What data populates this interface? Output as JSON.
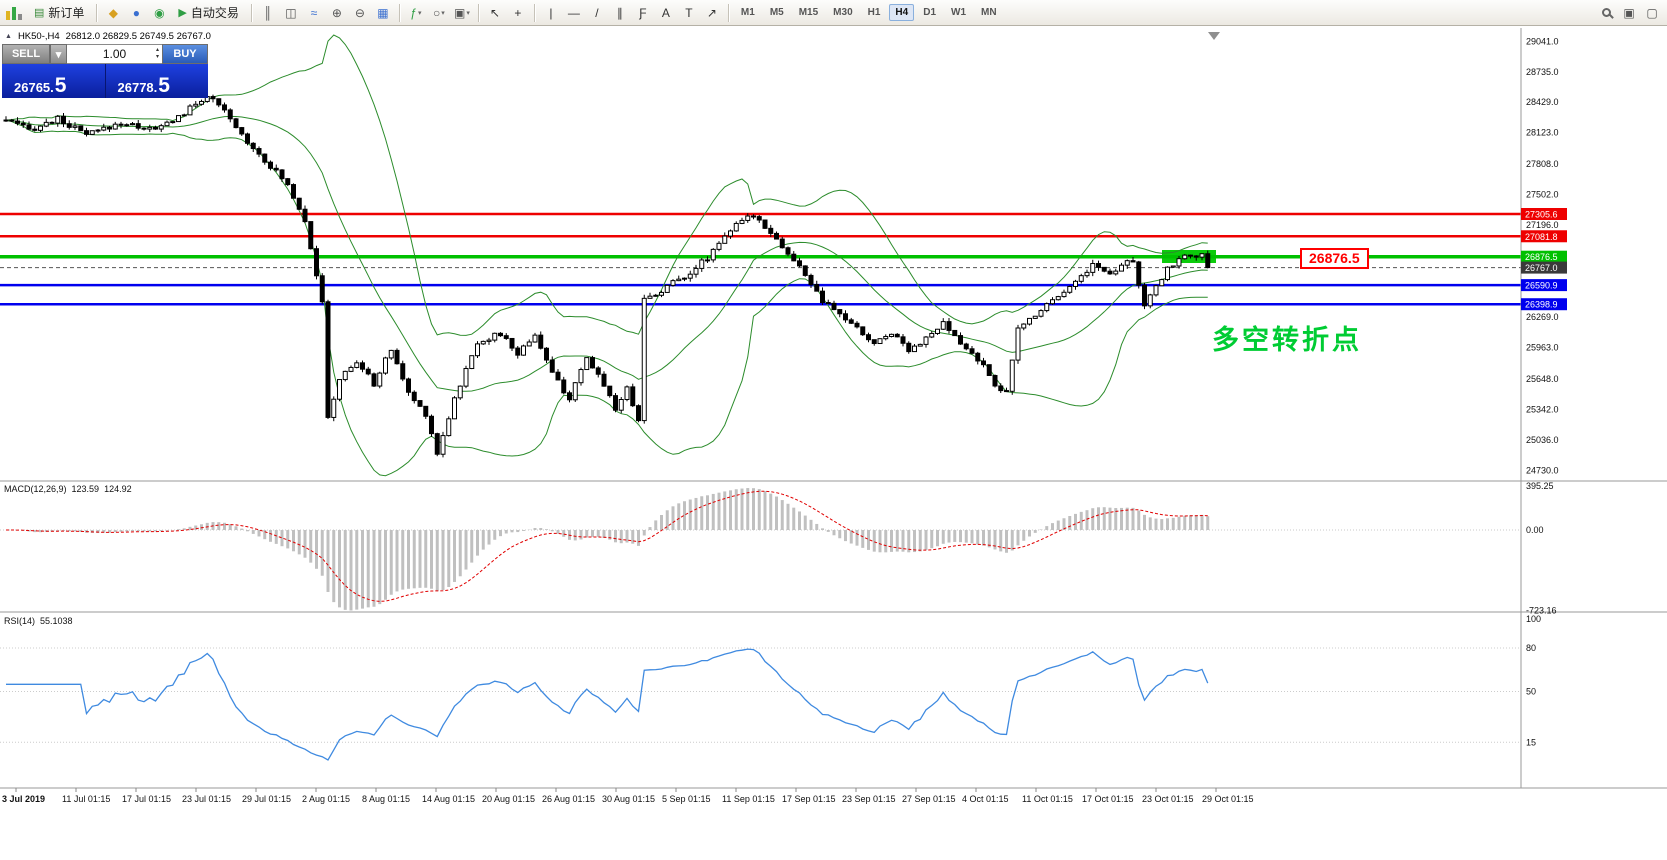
{
  "toolbar": {
    "timeframes": [
      "M1",
      "M5",
      "M15",
      "M30",
      "H1",
      "H4",
      "D1",
      "W1",
      "MN"
    ],
    "active_timeframe": "H4",
    "items": [
      {
        "t": "app"
      },
      {
        "t": "btn",
        "name": "new-order-button",
        "icon": "new-order-icon",
        "glyph": "▤",
        "color": "#3a8a3a",
        "label": "新订单"
      },
      {
        "t": "sep"
      },
      {
        "t": "icon",
        "name": "profiles-icon",
        "glyph": "◆",
        "color": "#d8a020"
      },
      {
        "t": "icon",
        "name": "charts-icon",
        "glyph": "●",
        "color": "#3a6fd0"
      },
      {
        "t": "icon",
        "name": "info-icon",
        "glyph": "◉",
        "color": "#2f9e44"
      },
      {
        "t": "btn",
        "name": "autotrading-button",
        "icon": "autotrading-play-icon",
        "glyph": "▶",
        "color": "#2f9e44",
        "label": "自动交易"
      },
      {
        "t": "sep"
      },
      {
        "t": "icon",
        "name": "bar-chart-icon",
        "glyph": "║",
        "color": "#555555"
      },
      {
        "t": "icon",
        "name": "candlestick-chart-icon",
        "glyph": "◫",
        "color": "#555555"
      },
      {
        "t": "icon",
        "name": "line-chart-icon",
        "glyph": "≈",
        "color": "#3a6fd0"
      },
      {
        "t": "icon",
        "name": "zoom-in-icon",
        "glyph": "⊕",
        "color": "#555555"
      },
      {
        "t": "icon",
        "name": "zoom-out-icon",
        "glyph": "⊖",
        "color": "#555555"
      },
      {
        "t": "icon",
        "name": "tile-windows-icon",
        "glyph": "▦",
        "color": "#3a6fd0"
      },
      {
        "t": "sep"
      },
      {
        "t": "icon",
        "name": "indicators-icon",
        "glyph": "ƒ",
        "color": "#2f9e44",
        "dd": true
      },
      {
        "t": "icon",
        "name": "periods-icon",
        "glyph": "○",
        "color": "#555555",
        "dd": true
      },
      {
        "t": "icon",
        "name": "templates-icon",
        "glyph": "▣",
        "color": "#555555",
        "dd": true
      },
      {
        "t": "sep"
      },
      {
        "t": "icon",
        "name": "cursor-icon",
        "glyph": "↖",
        "color": "#333333"
      },
      {
        "t": "icon",
        "name": "crosshair-icon",
        "glyph": "+",
        "color": "#333333"
      },
      {
        "t": "sep"
      },
      {
        "t": "icon",
        "name": "vertical-line-icon",
        "glyph": "|",
        "color": "#333333"
      },
      {
        "t": "icon",
        "name": "horizontal-line-icon",
        "glyph": "—",
        "color": "#333333"
      },
      {
        "t": "icon",
        "name": "trendline-icon",
        "glyph": "/",
        "color": "#333333"
      },
      {
        "t": "icon",
        "name": "equidistant-channel-icon",
        "glyph": "∥",
        "color": "#333333"
      },
      {
        "t": "icon",
        "name": "fibonacci-icon",
        "glyph": "Ƒ",
        "color": "#333333"
      },
      {
        "t": "icon",
        "name": "text-icon",
        "glyph": "A",
        "color": "#333333"
      },
      {
        "t": "icon",
        "name": "text-label-icon",
        "glyph": "T",
        "color": "#333333"
      },
      {
        "t": "icon",
        "name": "arrow-objects-icon",
        "glyph": "↗",
        "color": "#333333"
      },
      {
        "t": "sep"
      },
      {
        "t": "tf"
      },
      {
        "t": "spring"
      },
      {
        "t": "search"
      },
      {
        "t": "icon",
        "name": "new-chart-icon",
        "glyph": "▣",
        "color": "#555555"
      },
      {
        "t": "icon",
        "name": "window-list-icon",
        "glyph": "▢",
        "color": "#555555"
      }
    ]
  },
  "chart": {
    "collapse_icon": "▲",
    "symbol_period": "HK50-,H4",
    "ohlc_text": "26812.0 26829.5 26749.5 26767.0",
    "price_callout": "26876.5",
    "annotation": "多空转折点",
    "trade_panel": {
      "sell_label": "SELL",
      "buy_label": "BUY",
      "volume": "1.00",
      "sell_price": "26765.",
      "sell_big": "5",
      "buy_price": "26778.",
      "buy_big": "5"
    }
  },
  "macd": {
    "name": "MACD(12,26,9)",
    "value_main": "123.59",
    "value_signal": "124.92",
    "axis": [
      {
        "text": "395.25",
        "value": 395.25
      },
      {
        "text": "0.00",
        "value": 0
      },
      {
        "text": "-723.16",
        "value": -723.16
      }
    ]
  },
  "rsi": {
    "name": "RSI(14)",
    "value": "55.1038",
    "levels": [
      80,
      50,
      15
    ],
    "axis": [
      {
        "text": "100",
        "value": 100
      },
      {
        "text": "80",
        "value": 80
      },
      {
        "text": "50",
        "value": 50
      },
      {
        "text": "15",
        "value": 15
      }
    ]
  },
  "time_axis": [
    "3 Jul 2019",
    "11 Jul 01:15",
    "17 Jul 01:15",
    "23 Jul 01:15",
    "29 Jul 01:15",
    "2 Aug 01:15",
    "8 Aug 01:15",
    "14 Aug 01:15",
    "20 Aug 01:15",
    "26 Aug 01:15",
    "30 Aug 01:15",
    "5 Sep 01:15",
    "11 Sep 01:15",
    "17 Sep 01:15",
    "23 Sep 01:15",
    "27 Sep 01:15",
    "4 Oct 01:15",
    "11 Oct 01:15",
    "17 Oct 01:15",
    "23 Oct 01:15",
    "29 Oct 01:15"
  ],
  "chart_data": {
    "type": "candlestick",
    "symbol": "HK50-",
    "timeframe": "H4",
    "ohlc": {
      "open": 26812.0,
      "high": 26829.5,
      "low": 26749.5,
      "close": 26767.0
    },
    "candle_count": 210,
    "last_close": 26767.0,
    "band_color": "#2c8c2c",
    "highlight_color": "#0bcb0b",
    "price_anchors": [
      [
        0,
        28250
      ],
      [
        4,
        28150
      ],
      [
        9,
        28260
      ],
      [
        14,
        28100
      ],
      [
        20,
        28220
      ],
      [
        26,
        28150
      ],
      [
        31,
        28320
      ],
      [
        35,
        28500
      ],
      [
        38,
        28330
      ],
      [
        41,
        28100
      ],
      [
        45,
        27850
      ],
      [
        49,
        27600
      ],
      [
        52,
        27250
      ],
      [
        54,
        26700
      ],
      [
        55,
        26400
      ],
      [
        56,
        25250
      ],
      [
        58,
        25650
      ],
      [
        61,
        25820
      ],
      [
        64,
        25600
      ],
      [
        67,
        25950
      ],
      [
        70,
        25500
      ],
      [
        73,
        25300
      ],
      [
        75,
        24900
      ],
      [
        78,
        25450
      ],
      [
        82,
        26020
      ],
      [
        86,
        26100
      ],
      [
        89,
        25900
      ],
      [
        92,
        26100
      ],
      [
        95,
        25700
      ],
      [
        98,
        25450
      ],
      [
        101,
        25850
      ],
      [
        104,
        25600
      ],
      [
        106,
        25350
      ],
      [
        108,
        25550
      ],
      [
        110,
        25250
      ],
      [
        111,
        26450
      ],
      [
        113,
        26500
      ],
      [
        116,
        26620
      ],
      [
        119,
        26720
      ],
      [
        122,
        26870
      ],
      [
        125,
        27100
      ],
      [
        128,
        27230
      ],
      [
        130,
        27300
      ],
      [
        133,
        27130
      ],
      [
        136,
        26900
      ],
      [
        139,
        26700
      ],
      [
        142,
        26420
      ],
      [
        145,
        26300
      ],
      [
        148,
        26150
      ],
      [
        151,
        26000
      ],
      [
        154,
        26120
      ],
      [
        157,
        25950
      ],
      [
        160,
        26050
      ],
      [
        163,
        26200
      ],
      [
        166,
        26000
      ],
      [
        169,
        25850
      ],
      [
        172,
        25600
      ],
      [
        174,
        25500
      ],
      [
        176,
        26150
      ],
      [
        180,
        26350
      ],
      [
        183,
        26500
      ],
      [
        186,
        26620
      ],
      [
        189,
        26800
      ],
      [
        192,
        26700
      ],
      [
        195,
        26860
      ],
      [
        196,
        26820
      ],
      [
        198,
        26380
      ],
      [
        200,
        26560
      ],
      [
        202,
        26760
      ],
      [
        204,
        26850
      ],
      [
        206,
        26900
      ],
      [
        208,
        26880
      ],
      [
        209,
        26767
      ]
    ],
    "levels": [
      {
        "label": "27305.6",
        "value": 27305.6,
        "color": "#ee0000",
        "width": 2.5
      },
      {
        "label": "27081.8",
        "value": 27081.8,
        "color": "#ee0000",
        "width": 2.5
      },
      {
        "label": "26876.5",
        "value": 26876.5,
        "color": "#00c000",
        "width": 3.5
      },
      {
        "label": "26767.0",
        "value": 26767.0,
        "color": "#555555",
        "width": 1,
        "dash": "4,3",
        "tag": "#3a3a3a"
      },
      {
        "label": "26590.9",
        "value": 26590.9,
        "color": "#0000ee",
        "width": 2.5
      },
      {
        "label": "26398.9",
        "value": 26398.9,
        "color": "#0000ee",
        "width": 2.5
      }
    ],
    "axis_labels": [
      {
        "text": "29041.0",
        "value": 29041.0
      },
      {
        "text": "28735.0",
        "value": 28735.0
      },
      {
        "text": "28429.0",
        "value": 28429.0
      },
      {
        "text": "28123.0",
        "value": 28123.0
      },
      {
        "text": "27808.0",
        "value": 27808.0
      },
      {
        "text": "27502.0",
        "value": 27502.0
      },
      {
        "text": "27196.0",
        "value": 27196.0
      },
      {
        "text": "26269.0",
        "value": 26269.0
      },
      {
        "text": "25963.0",
        "value": 25963.0
      },
      {
        "text": "25648.0",
        "value": 25648.0
      },
      {
        "text": "25342.0",
        "value": 25342.0
      },
      {
        "text": "25036.0",
        "value": 25036.0
      },
      {
        "text": "24730.0",
        "value": 24730.0
      }
    ],
    "indicators": [
      {
        "name": "Bollinger Bands"
      },
      {
        "name": "MACD(12,26,9)",
        "values": [
          123.59,
          124.92
        ]
      },
      {
        "name": "RSI(14)",
        "value": 55.1038
      }
    ]
  }
}
